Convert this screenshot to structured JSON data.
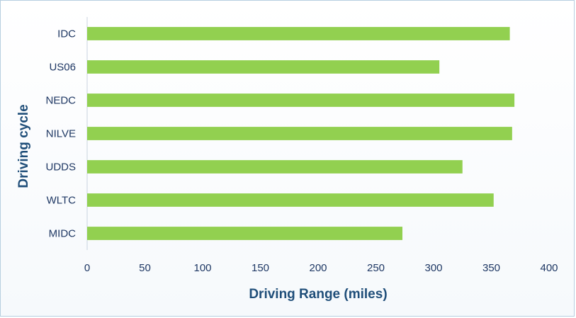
{
  "chart_data": {
    "type": "bar",
    "orientation": "horizontal",
    "categories": [
      "IDC",
      "US06",
      "NEDC",
      "NILVE",
      "UDDS",
      "WLTC",
      "MIDC"
    ],
    "values": [
      366,
      305,
      370,
      368,
      325,
      352,
      273
    ],
    "xlabel": "Driving Range (miles)",
    "ylabel": "Driving cycle",
    "xlim": [
      0,
      400
    ],
    "xticks": [
      "0",
      "50",
      "100",
      "150",
      "200",
      "250",
      "300",
      "350",
      "400"
    ],
    "grid": false,
    "bar_color": "#92d050",
    "text_color": "#1f3864",
    "title_color": "#1f4e79"
  }
}
